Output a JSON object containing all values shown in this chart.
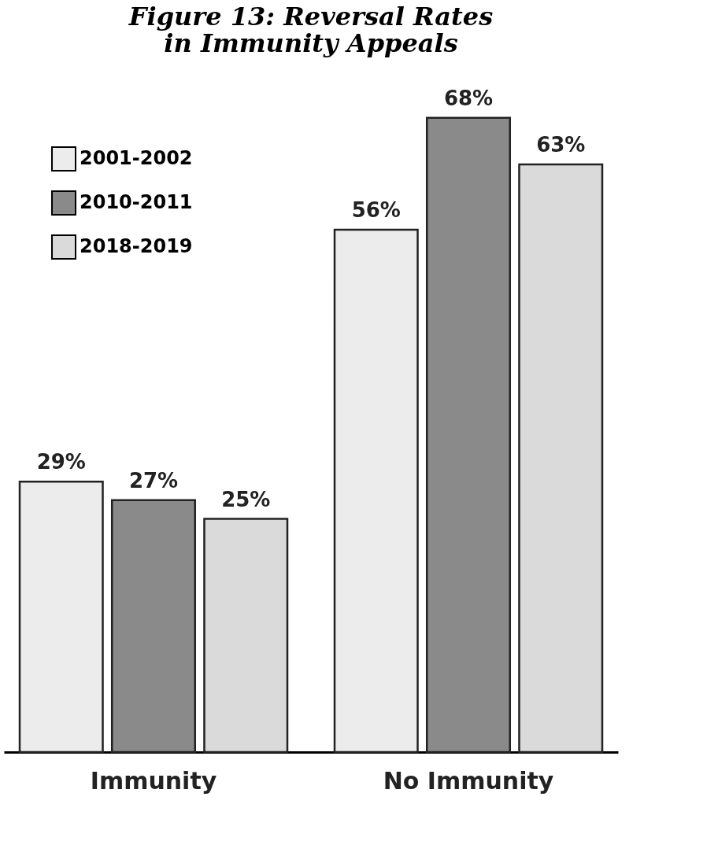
{
  "chart_data": {
    "type": "bar",
    "title": "Figure 13: Reversal Rates\nin Immunity Appeals",
    "categories": [
      "Immunity",
      "No Immunity"
    ],
    "series": [
      {
        "name": "2001-2002",
        "color": "#ececec",
        "values": [
          29,
          56
        ],
        "value_labels": [
          "29%",
          "56%"
        ]
      },
      {
        "name": "2010-2011",
        "color": "#8a8a8a",
        "values": [
          27,
          68
        ],
        "value_labels": [
          "27%",
          "68%"
        ]
      },
      {
        "name": "2018-2019",
        "color": "#dadada",
        "values": [
          25,
          63
        ],
        "value_labels": [
          "25%",
          "63%"
        ]
      }
    ],
    "legend": "top left",
    "grid": false
  }
}
